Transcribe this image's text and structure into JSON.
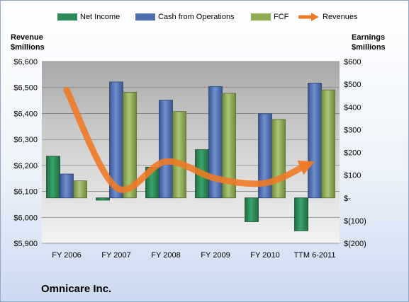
{
  "company": "Omnicare Inc.",
  "colors": {
    "net_income": "#2e8b57",
    "cash_from_operations": "#4f6fb0",
    "fcf": "#8fac56",
    "revenues": "#ee7a26"
  },
  "chart_data": {
    "type": "bar",
    "categories": [
      "FY 2006",
      "FY 2007",
      "FY 2008",
      "FY 2009",
      "FY 2010",
      "TTM 6-2011"
    ],
    "left_axis": {
      "label_line1": "Revenue",
      "label_line2": "$millions",
      "ylim": [
        5900,
        6600
      ],
      "ticks": [
        5900,
        6000,
        6100,
        6200,
        6300,
        6400,
        6500,
        6600
      ],
      "tick_labels": [
        "$5,900",
        "$6,000",
        "$6,100",
        "$6,200",
        "$6,300",
        "$6,400",
        "$6,500",
        "$6,600"
      ]
    },
    "right_axis": {
      "label_line1": "Earnings",
      "label_line2": "$millions",
      "ylim": [
        -200,
        600
      ],
      "ticks": [
        -200,
        -100,
        0,
        100,
        200,
        300,
        400,
        500,
        600
      ],
      "tick_labels": [
        "$(200)",
        "$(100)",
        "$-",
        "$100",
        "$200",
        "$300",
        "$400",
        "$500",
        "$600"
      ]
    },
    "series": [
      {
        "name": "Net Income",
        "axis": "right",
        "kind": "bar",
        "values": [
          183,
          -10,
          135,
          212,
          -105,
          -145
        ]
      },
      {
        "name": "Cash from Operations",
        "axis": "right",
        "kind": "bar",
        "values": [
          105,
          510,
          430,
          490,
          370,
          505
        ]
      },
      {
        "name": "FCF",
        "axis": "right",
        "kind": "bar",
        "values": [
          75,
          465,
          380,
          460,
          345,
          475
        ]
      },
      {
        "name": "Revenues",
        "axis": "left",
        "kind": "line",
        "values": [
          6490,
          6115,
          6215,
          6150,
          6132,
          6215
        ]
      }
    ],
    "grid": true,
    "legend": "top"
  }
}
